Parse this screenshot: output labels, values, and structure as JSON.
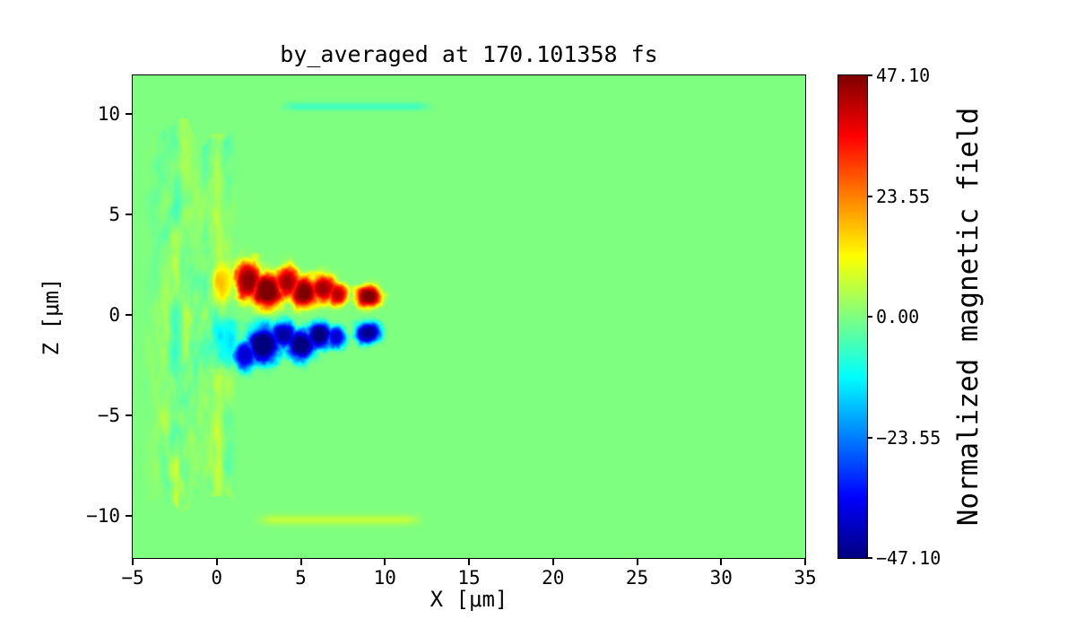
{
  "figure": {
    "title": "by_averaged at 170.101358 fs",
    "xlabel": "X [μm]",
    "ylabel": "Z [μm]",
    "colorbar_label": "Normalized magnetic field",
    "background_color": "#ffffff",
    "text_color": "#000000"
  },
  "chart_data": {
    "type": "heatmap",
    "title": "by_averaged at 170.101358 fs",
    "xlabel": "X [μm]",
    "ylabel": "Z [μm]",
    "xlim": [
      -5,
      35
    ],
    "ylim": [
      -12.1,
      11.9
    ],
    "grid": false,
    "x_ticks": [
      {
        "value": -5,
        "label": "−5"
      },
      {
        "value": 0,
        "label": "0"
      },
      {
        "value": 5,
        "label": "5"
      },
      {
        "value": 10,
        "label": "10"
      },
      {
        "value": 15,
        "label": "15"
      },
      {
        "value": 20,
        "label": "20"
      },
      {
        "value": 25,
        "label": "25"
      },
      {
        "value": 30,
        "label": "30"
      },
      {
        "value": 35,
        "label": "35"
      }
    ],
    "y_ticks": [
      {
        "value": 10,
        "label": "10"
      },
      {
        "value": 5,
        "label": "5"
      },
      {
        "value": 0,
        "label": "0"
      },
      {
        "value": -5,
        "label": "−5"
      },
      {
        "value": -10,
        "label": "−10"
      }
    ],
    "colorbar": {
      "label": "Normalized magnetic field",
      "colormap": "jet",
      "vmin": -47.1,
      "vmax": 47.1,
      "ticks": [
        {
          "value": 47.1,
          "label": "47.10"
        },
        {
          "value": 23.55,
          "label": "23.55"
        },
        {
          "value": 0,
          "label": "0.00"
        },
        {
          "value": -23.55,
          "label": "−23.55"
        },
        {
          "value": -47.1,
          "label": "−47.10"
        }
      ]
    },
    "background_value": 0,
    "features": {
      "turbulence": {
        "x_min": -4.8,
        "x_max": 1.35,
        "z_limit": 10.6,
        "amplitude": 12,
        "freq_x": 1.6,
        "freq_z": 0.55
      },
      "spine": {
        "x": 0.05,
        "width": 0.3,
        "amplitude": 7,
        "z_limit": 9.7
      },
      "positive_blobs": [
        {
          "x": 1.9,
          "z": 1.7,
          "rx": 0.8,
          "rz": 1.0,
          "v": 46
        },
        {
          "x": 3.0,
          "z": 1.2,
          "rx": 1.0,
          "rz": 0.9,
          "v": 50
        },
        {
          "x": 4.2,
          "z": 1.6,
          "rx": 0.8,
          "rz": 0.8,
          "v": 44
        },
        {
          "x": 5.2,
          "z": 1.1,
          "rx": 0.9,
          "rz": 0.8,
          "v": 48
        },
        {
          "x": 6.3,
          "z": 1.3,
          "rx": 0.8,
          "rz": 0.7,
          "v": 44
        },
        {
          "x": 7.2,
          "z": 1.0,
          "rx": 0.6,
          "rz": 0.6,
          "v": 42
        },
        {
          "x": 9.0,
          "z": 0.9,
          "rx": 0.8,
          "rz": 0.55,
          "v": 48
        },
        {
          "x": 0.4,
          "z": 1.6,
          "rx": 0.6,
          "rz": 0.9,
          "v": 14
        }
      ],
      "negative_blobs": [
        {
          "x": 1.7,
          "z": -2.0,
          "rx": 0.7,
          "rz": 0.75,
          "v": -40
        },
        {
          "x": 2.8,
          "z": -1.5,
          "rx": 1.0,
          "rz": 1.0,
          "v": -50
        },
        {
          "x": 4.0,
          "z": -1.0,
          "rx": 0.8,
          "rz": 0.7,
          "v": -44
        },
        {
          "x": 5.0,
          "z": -1.5,
          "rx": 0.9,
          "rz": 0.8,
          "v": -48
        },
        {
          "x": 6.1,
          "z": -1.0,
          "rx": 0.8,
          "rz": 0.65,
          "v": -50
        },
        {
          "x": 7.1,
          "z": -1.1,
          "rx": 0.6,
          "rz": 0.55,
          "v": -40
        },
        {
          "x": 9.0,
          "z": -0.9,
          "rx": 0.8,
          "rz": 0.55,
          "v": -46
        },
        {
          "x": 0.5,
          "z": -1.4,
          "rx": 0.8,
          "rz": 1.2,
          "v": -16
        }
      ],
      "streaks": [
        {
          "x0": 3.4,
          "x1": 13.2,
          "z": 10.35,
          "half_width": 0.2,
          "v": -6
        },
        {
          "x0": 2.0,
          "x1": 12.6,
          "z": -10.2,
          "half_width": 0.25,
          "v": 6
        }
      ]
    }
  }
}
